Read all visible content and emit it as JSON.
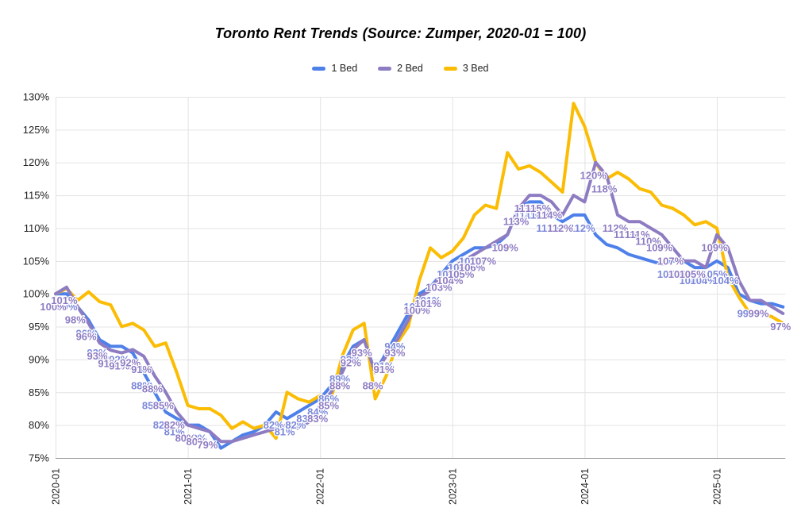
{
  "title": "Toronto Rent Trends (Source: Zumper, 2020-01 = 100)",
  "legend": [
    {
      "label": "1 Bed",
      "color": "#4e80ea"
    },
    {
      "label": "2 Bed",
      "color": "#8e7cc3"
    },
    {
      "label": "3 Bed",
      "color": "#fbbc04"
    }
  ],
  "chart_data": {
    "type": "line",
    "title": "Toronto Rent Trends (Source: Zumper, 2020-01 = 100)",
    "x_start": "2020-01",
    "x_end": "2025-07",
    "x_interval": "monthly",
    "n_points": 67,
    "x_tick_labels": [
      "2020-01",
      "2021-01",
      "2022-01",
      "2023-01",
      "2024-01",
      "2025-01"
    ],
    "x_tick_month_indices": [
      0,
      12,
      24,
      36,
      48,
      60
    ],
    "y_tick_labels": [
      "75%",
      "80%",
      "85%",
      "90%",
      "95%",
      "100%",
      "105%",
      "110%",
      "115%",
      "120%",
      "125%",
      "130%"
    ],
    "ylim": [
      75,
      130
    ],
    "y_step": 5,
    "grid": true,
    "legend_position": "top",
    "value_suffix": "%",
    "series": [
      {
        "name": "1 Bed",
        "color": "#4e80ea",
        "label_color": "#7b87d9",
        "values": [
          100,
          100,
          98,
          96,
          93,
          92,
          92,
          91,
          88,
          85,
          82,
          81,
          80,
          80,
          79,
          76.5,
          77.5,
          78.5,
          79,
          80,
          82,
          81,
          82,
          83,
          84,
          86,
          89,
          92,
          93,
          88,
          91,
          94,
          97,
          100,
          101,
          103,
          105,
          106,
          107,
          107,
          107.5,
          109,
          113,
          114,
          114,
          112,
          111,
          112,
          112,
          109,
          107.5,
          107,
          106,
          105.5,
          105,
          104.5,
          105,
          105,
          104,
          104,
          105,
          104,
          100,
          99,
          98.5,
          98.5,
          98
        ],
        "label_month_indices": [
          0,
          1,
          2,
          3,
          4,
          5,
          6,
          7,
          8,
          9,
          10,
          11,
          12,
          13,
          14,
          20,
          21,
          22,
          23,
          24,
          25,
          26,
          27,
          28,
          29,
          30,
          31,
          33,
          34,
          35,
          36,
          37,
          38,
          39,
          41,
          42,
          43,
          44,
          45,
          48,
          56,
          57,
          58,
          59,
          60,
          61,
          63
        ]
      },
      {
        "name": "2 Bed",
        "color": "#8e7cc3",
        "label_color": "#8e7cc3",
        "values": [
          100,
          101,
          98,
          95.5,
          92.5,
          91.4,
          91,
          91.5,
          90.5,
          87.5,
          85,
          82,
          80,
          79.5,
          79,
          77.5,
          77.5,
          78,
          78.5,
          79,
          79.5,
          80,
          79.5,
          80.5,
          83,
          85,
          88,
          91.5,
          93,
          88,
          90.5,
          93,
          96,
          99.5,
          100.5,
          103,
          104,
          105,
          106,
          107,
          108,
          109,
          113,
          115,
          115,
          114,
          112,
          115,
          114,
          120,
          118,
          112,
          111,
          111,
          110,
          109,
          107,
          105,
          105,
          104,
          109,
          107,
          102,
          99,
          99,
          98,
          97
        ],
        "label_month_indices": [
          0,
          1,
          2,
          3,
          4,
          5,
          6,
          7,
          8,
          9,
          10,
          11,
          12,
          13,
          14,
          24,
          25,
          26,
          27,
          28,
          29,
          30,
          31,
          33,
          34,
          35,
          36,
          37,
          38,
          39,
          41,
          42,
          43,
          44,
          45,
          46,
          49,
          50,
          51,
          52,
          53,
          54,
          55,
          56,
          57,
          58,
          60,
          64,
          66
        ]
      },
      {
        "name": "3 Bed",
        "color": "#fbbc04",
        "label_color": null,
        "values": [
          100,
          100.8,
          99,
          100.3,
          98.8,
          98.3,
          95,
          95.5,
          94.5,
          92,
          92.5,
          88,
          83,
          82.5,
          82.5,
          81.5,
          79.5,
          80.5,
          79.5,
          80,
          78,
          85,
          84,
          83.5,
          84.5,
          84,
          90.5,
          94.5,
          95.5,
          84,
          87.5,
          92.5,
          95,
          102,
          107,
          105.5,
          106.5,
          108.5,
          112,
          113.5,
          113,
          121.5,
          119,
          119.5,
          118.5,
          117,
          115.5,
          129,
          125.5,
          120,
          117.5,
          118.5,
          117.5,
          116,
          115.5,
          113.5,
          113,
          112,
          110.5,
          111,
          110,
          102.5,
          99.5,
          97,
          97,
          96.5,
          95.5
        ],
        "label_month_indices": []
      }
    ]
  }
}
